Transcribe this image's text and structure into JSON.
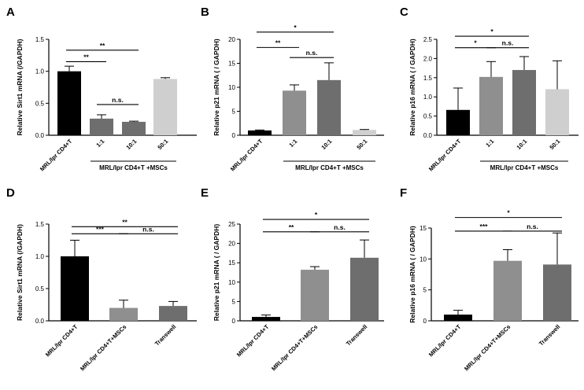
{
  "colors": {
    "black": "#000000",
    "dark_gray": "#6e6e6e",
    "mid_gray": "#8f8f8f",
    "light_gray": "#cfcfcf",
    "axis": "#000000"
  },
  "chart_data": [
    {
      "panel": "A",
      "type": "bar",
      "ylabel": "Relative Sirt1 mRNA (/GAPDH)",
      "ylim": [
        0,
        1.5
      ],
      "yticks": [
        0.0,
        0.5,
        1.0,
        1.5
      ],
      "categories": [
        "MRL/lpr CD4+T",
        "1:1",
        "10:1",
        "50:1"
      ],
      "values": [
        1.0,
        0.26,
        0.21,
        0.88
      ],
      "errors": [
        0.08,
        0.06,
        0.01,
        0.02
      ],
      "bar_colors": [
        "black",
        "dark_gray",
        "dark_gray",
        "light_gray"
      ],
      "group_label": "MRL/lpr CD4+T +MSCs",
      "group_from": 1,
      "group_to": 3,
      "significance": [
        {
          "from": 0,
          "to": 2,
          "label": "**",
          "y": 1.33
        },
        {
          "from": 0,
          "to": 1,
          "label": "**",
          "y": 1.15
        },
        {
          "from": 1,
          "to": 2,
          "label": "n.s.",
          "y": 0.48
        }
      ]
    },
    {
      "panel": "B",
      "type": "bar",
      "ylabel": "Relative p21 mRNA  ( / GAPDH)",
      "ylim": [
        0,
        20
      ],
      "yticks": [
        0,
        5,
        10,
        15,
        20
      ],
      "categories": [
        "MRL/lpr CD4+T",
        "1:1",
        "10:1",
        "50:1"
      ],
      "values": [
        1.0,
        9.3,
        11.5,
        1.1
      ],
      "errors": [
        0.1,
        1.2,
        3.6,
        0.1
      ],
      "bar_colors": [
        "black",
        "mid_gray",
        "dark_gray",
        "light_gray"
      ],
      "group_label": "MRL/lpr CD4+T +MSCs",
      "group_from": 1,
      "group_to": 3,
      "significance": [
        {
          "from": 0,
          "to": 2,
          "label": "*",
          "y": 21.5
        },
        {
          "from": 0,
          "to": 1,
          "label": "**",
          "y": 18.3
        },
        {
          "from": 1,
          "to": 2,
          "label": "n.s.",
          "y": 16.2
        }
      ]
    },
    {
      "panel": "C",
      "type": "bar",
      "ylabel": "Relative p16 mRNA  ( / GAPDH)",
      "ylim": [
        0,
        2.5
      ],
      "yticks": [
        0.0,
        0.5,
        1.0,
        1.5,
        2.0,
        2.5
      ],
      "categories": [
        "MRL/lpr CD4+T",
        "1:1",
        "10:1",
        "50:1"
      ],
      "values": [
        0.66,
        1.52,
        1.7,
        1.2
      ],
      "errors": [
        0.57,
        0.4,
        0.35,
        0.74
      ],
      "bar_colors": [
        "black",
        "mid_gray",
        "dark_gray",
        "light_gray"
      ],
      "group_label": "MRL/lpr CD4+T +MSCs",
      "group_from": 1,
      "group_to": 3,
      "significance": [
        {
          "from": 0,
          "to": 2,
          "label": "*",
          "y": 2.58
        },
        {
          "from": 0,
          "to": 1,
          "label": "*",
          "y": 2.28
        },
        {
          "from": 1,
          "to": 2,
          "label": "n.s.",
          "y": 2.28
        }
      ]
    },
    {
      "panel": "D",
      "type": "bar",
      "ylabel": "Relative Sirt1 mRNA (/GAPDH)",
      "ylim": [
        0,
        1.5
      ],
      "yticks": [
        0.0,
        0.5,
        1.0,
        1.5
      ],
      "categories": [
        "MRL/lpr CD4+T",
        "MRL/lpr CD4+T+MSCs",
        "Transwell"
      ],
      "values": [
        1.0,
        0.2,
        0.23
      ],
      "errors": [
        0.25,
        0.12,
        0.07
      ],
      "bar_colors": [
        "black",
        "mid_gray",
        "dark_gray"
      ],
      "significance": [
        {
          "from": 0,
          "to": 2,
          "label": "**",
          "y": 1.46
        },
        {
          "from": 0,
          "to": 1,
          "label": "***",
          "y": 1.35
        },
        {
          "from": 1,
          "to": 2,
          "label": "n.s.",
          "y": 1.35
        }
      ]
    },
    {
      "panel": "E",
      "type": "bar",
      "ylabel": "Relative p21 mRNA  ( / GAPDH)",
      "ylim": [
        0,
        25
      ],
      "yticks": [
        0,
        5,
        10,
        15,
        20,
        25
      ],
      "categories": [
        "MRL/lpr CD4+T",
        "MRL/lpr CD4+T+MSCs",
        "Transwell"
      ],
      "values": [
        1.0,
        13.2,
        16.3
      ],
      "errors": [
        0.5,
        0.8,
        4.6
      ],
      "bar_colors": [
        "black",
        "mid_gray",
        "dark_gray"
      ],
      "significance": [
        {
          "from": 0,
          "to": 2,
          "label": "*",
          "y": 26.2
        },
        {
          "from": 0,
          "to": 1,
          "label": "**",
          "y": 23.0
        },
        {
          "from": 1,
          "to": 2,
          "label": "n.s.",
          "y": 23.0
        }
      ]
    },
    {
      "panel": "F",
      "type": "bar",
      "ylabel": "Relative p16 mRNA  ( / GAPDH)",
      "ylim": [
        0,
        15
      ],
      "yticks": [
        0,
        5,
        10,
        15
      ],
      "categories": [
        "MRL/lpr CD4+T",
        "MRL/lpr CD4+T+MSCs",
        "Transwell"
      ],
      "values": [
        1.0,
        9.7,
        9.1
      ],
      "errors": [
        0.7,
        1.8,
        5.1
      ],
      "bar_colors": [
        "black",
        "mid_gray",
        "dark_gray"
      ],
      "significance": [
        {
          "from": 0,
          "to": 2,
          "label": "*",
          "y": 16.7
        },
        {
          "from": 0,
          "to": 1,
          "label": "***",
          "y": 14.5
        },
        {
          "from": 1,
          "to": 2,
          "label": "n.s.",
          "y": 14.5
        }
      ]
    }
  ]
}
